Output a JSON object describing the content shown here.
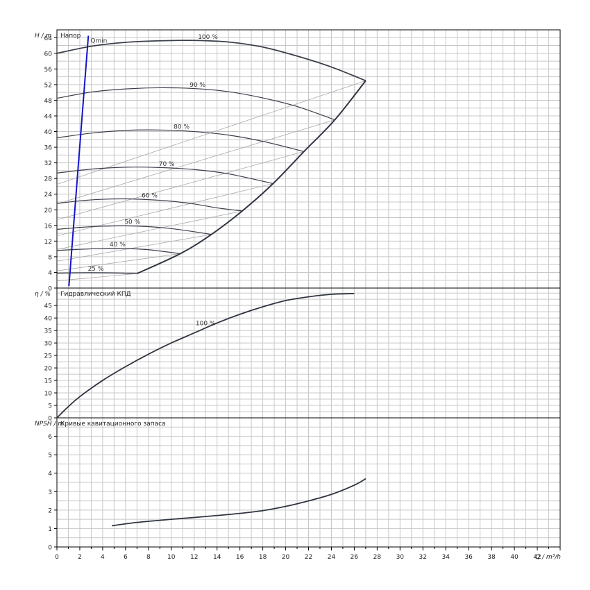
{
  "chart_data": [
    {
      "type": "line",
      "title": "Напор",
      "ylabel": "H / m",
      "xlim": [
        0,
        44
      ],
      "ylim": [
        0,
        66
      ],
      "yticks": [
        0,
        4,
        8,
        12,
        16,
        20,
        24,
        28,
        32,
        36,
        40,
        44,
        48,
        52,
        56,
        60,
        64
      ],
      "grid": true,
      "series": [
        {
          "name": "100 %",
          "x": [
            0,
            3,
            6,
            9,
            12,
            15,
            18,
            21,
            24,
            27
          ],
          "y": [
            60,
            61.8,
            62.8,
            63.2,
            63.3,
            62.9,
            61.6,
            59.3,
            56.5,
            53
          ]
        },
        {
          "name": "90 %",
          "x": [
            0,
            3,
            6,
            9,
            12,
            15,
            18,
            21,
            24.3
          ],
          "y": [
            48.5,
            50.1,
            50.9,
            51.2,
            51.0,
            50.2,
            48.6,
            46.4,
            43.0
          ]
        },
        {
          "name": "80 %",
          "x": [
            0,
            3,
            6,
            9,
            12,
            15,
            18,
            21.6
          ],
          "y": [
            38.4,
            39.6,
            40.3,
            40.4,
            40.0,
            39.1,
            37.5,
            34.9
          ]
        },
        {
          "name": "70 %",
          "x": [
            0,
            3,
            6,
            9,
            12,
            15,
            18.9
          ],
          "y": [
            29.4,
            30.4,
            30.9,
            30.8,
            30.3,
            29.2,
            26.7
          ]
        },
        {
          "name": "60 %",
          "x": [
            0,
            2,
            4,
            6,
            8,
            10,
            12,
            14,
            16.2
          ],
          "y": [
            21.6,
            22.3,
            22.7,
            22.8,
            22.6,
            22.2,
            21.5,
            20.5,
            19.7
          ]
        },
        {
          "name": "50 %",
          "x": [
            0,
            2,
            4,
            6,
            8,
            10,
            12,
            13.5
          ],
          "y": [
            15.0,
            15.5,
            15.8,
            15.9,
            15.7,
            15.2,
            14.4,
            13.7
          ]
        },
        {
          "name": "40 %",
          "x": [
            0,
            2,
            4,
            6,
            8,
            10.8
          ],
          "y": [
            9.6,
            9.9,
            10.1,
            10.1,
            9.8,
            8.8
          ]
        },
        {
          "name": "25 %",
          "x": [
            0,
            2,
            4,
            6,
            7
          ],
          "y": [
            3.8,
            3.9,
            3.9,
            3.8,
            3.7
          ]
        },
        {
          "name": "",
          "x": [
            7,
            10.8,
            13.5,
            16.2,
            18.9,
            21.6,
            24.3,
            27
          ],
          "y": [
            3.7,
            8.8,
            13.7,
            19.7,
            26.7,
            34.9,
            43.0,
            53
          ]
        },
        {
          "name": "Qmin",
          "x": [
            1.05,
            2.75
          ],
          "y": [
            0.5,
            64.5
          ]
        }
      ],
      "annotations": [
        "Qmin"
      ]
    },
    {
      "type": "line",
      "title": "Гидравлический КПД",
      "ylabel": "η / %",
      "xlim": [
        0,
        44
      ],
      "ylim": [
        0,
        52
      ],
      "yticks": [
        0,
        5,
        10,
        15,
        20,
        25,
        30,
        35,
        40,
        45
      ],
      "grid": true,
      "series": [
        {
          "name": "100 %",
          "x": [
            0,
            1,
            2,
            4,
            6,
            8,
            10,
            12,
            14,
            16,
            18,
            20,
            22,
            24,
            26
          ],
          "y": [
            0,
            4.5,
            8.5,
            15,
            20.5,
            25.5,
            30,
            34,
            38,
            41.5,
            44.5,
            47,
            48.5,
            49.5,
            49.8
          ]
        }
      ]
    },
    {
      "type": "line",
      "title": "Кривые кавитационного запаса",
      "ylabel": "NPSH / m",
      "xlabel": "Q / m³/h",
      "xlim": [
        0,
        44
      ],
      "ylim": [
        0,
        7
      ],
      "xticks": [
        0,
        2,
        4,
        6,
        8,
        10,
        12,
        14,
        16,
        18,
        20,
        22,
        24,
        26,
        28,
        30,
        32,
        34,
        36,
        38,
        40,
        42
      ],
      "yticks": [
        0,
        1,
        2,
        3,
        4,
        5,
        6
      ],
      "grid": true,
      "series": [
        {
          "name": "",
          "x": [
            4.8,
            7,
            10,
            13,
            16,
            18,
            20,
            22,
            24,
            26,
            27
          ],
          "y": [
            1.15,
            1.33,
            1.5,
            1.65,
            1.82,
            1.97,
            2.2,
            2.5,
            2.85,
            3.35,
            3.7
          ]
        }
      ]
    }
  ]
}
